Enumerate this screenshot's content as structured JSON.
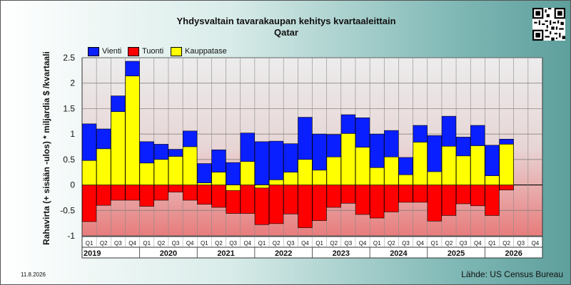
{
  "header": {
    "title": "Yhdysvaltain tavarakaupan kehitys kvartaaleittain",
    "subtitle": "Qatar"
  },
  "footer": {
    "date": "11.8.2026",
    "source": "Lähde: US Census Bureau"
  },
  "chart_data": {
    "type": "bar",
    "ylabel": "Rahavirta (+ sisään -ulos) * miljardia $ /kvartaali",
    "ylim": [
      -1,
      2.5
    ],
    "yticks": [
      -1,
      -0.5,
      0,
      0.5,
      1,
      1.5,
      2,
      2.5
    ],
    "grid": true,
    "legend_position": "top-left",
    "colors": {
      "Vienti": "#0a1fff",
      "Tuonti": "#ff0000",
      "Kauppatase": "#ffff00"
    },
    "quarter_labels": [
      "Q1",
      "Q2",
      "Q3",
      "Q4"
    ],
    "years": [
      "2019",
      "2020",
      "2021",
      "2022",
      "2023",
      "2024",
      "2025",
      "2026"
    ],
    "series": [
      {
        "name": "Vienti",
        "values": [
          1.2,
          1.1,
          1.75,
          2.43,
          0.85,
          0.8,
          0.7,
          1.06,
          0.42,
          0.69,
          0.44,
          1.02,
          0.85,
          0.86,
          0.81,
          1.33,
          1.0,
          0.99,
          1.38,
          1.32,
          1.0,
          1.07,
          0.54,
          1.17,
          0.97,
          1.35,
          0.94,
          1.17,
          0.78,
          0.9,
          null,
          null
        ]
      },
      {
        "name": "Tuonti",
        "values": [
          -0.72,
          -0.4,
          -0.3,
          -0.3,
          -0.42,
          -0.3,
          -0.14,
          -0.3,
          -0.38,
          -0.44,
          -0.56,
          -0.56,
          -0.78,
          -0.76,
          -0.57,
          -0.84,
          -0.7,
          -0.44,
          -0.36,
          -0.58,
          -0.65,
          -0.53,
          -0.34,
          -0.34,
          -0.71,
          -0.6,
          -0.37,
          -0.41,
          -0.6,
          -0.1,
          null,
          null
        ]
      },
      {
        "name": "Kauppatase",
        "values": [
          0.48,
          0.71,
          1.44,
          2.14,
          0.43,
          0.5,
          0.56,
          0.75,
          0.04,
          0.25,
          -0.11,
          0.46,
          -0.06,
          0.1,
          0.25,
          0.5,
          0.29,
          0.55,
          1.01,
          0.74,
          0.34,
          0.55,
          0.2,
          0.84,
          0.26,
          0.76,
          0.57,
          0.77,
          0.18,
          0.8,
          null,
          null
        ]
      }
    ]
  }
}
